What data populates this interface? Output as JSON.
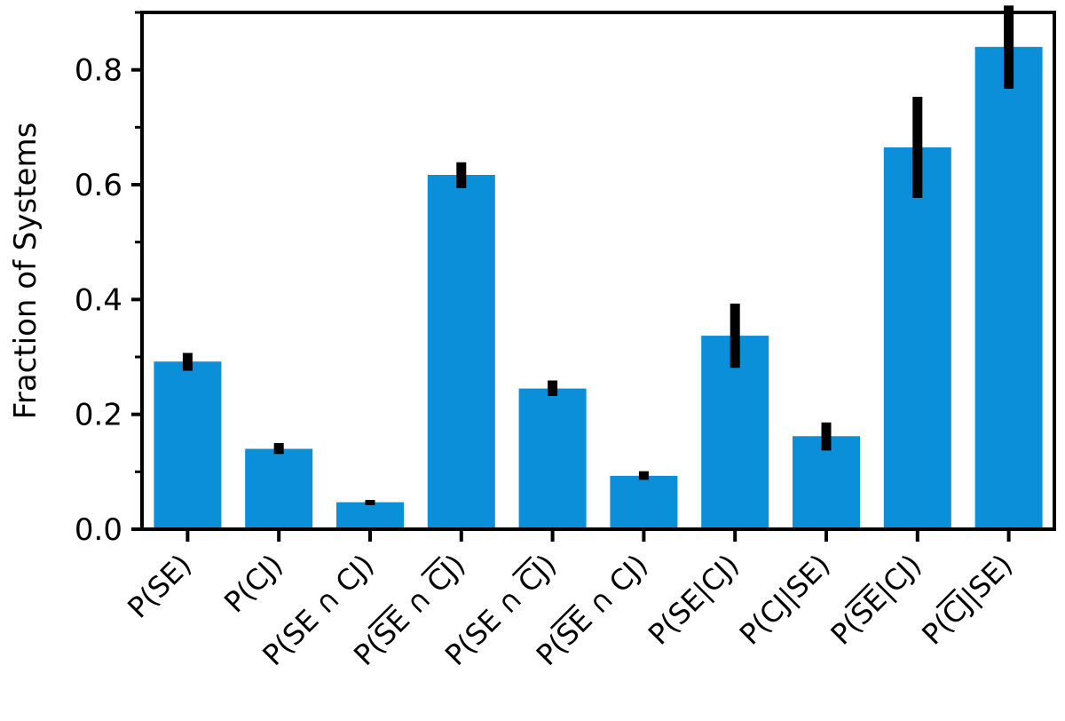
{
  "chart_data": {
    "type": "bar",
    "title": "",
    "xlabel": "",
    "ylabel": "Fraction of Systems",
    "ylim": [
      0.0,
      0.9
    ],
    "yticks_major": [
      0.0,
      0.2,
      0.4,
      0.6,
      0.8
    ],
    "yticks_major_labels": [
      "0.0",
      "0.2",
      "0.4",
      "0.6",
      "0.8"
    ],
    "yticks_minor": [
      0.1,
      0.3,
      0.5,
      0.7,
      0.9
    ],
    "grid": false,
    "legend": "none",
    "categories": [
      {
        "pre": "P(",
        "t1": "SE",
        "b1": false,
        "mid": ")",
        "t2": "",
        "b2": false,
        "post": ""
      },
      {
        "pre": "P(",
        "t1": "CJ",
        "b1": false,
        "mid": ")",
        "t2": "",
        "b2": false,
        "post": ""
      },
      {
        "pre": "P(",
        "t1": "SE",
        "b1": false,
        "mid": " ∩ ",
        "t2": "CJ",
        "b2": false,
        "post": ")"
      },
      {
        "pre": "P(",
        "t1": "SE",
        "b1": true,
        "mid": " ∩ ",
        "t2": "CJ",
        "b2": true,
        "post": ")"
      },
      {
        "pre": "P(",
        "t1": "SE",
        "b1": false,
        "mid": " ∩ ",
        "t2": "CJ",
        "b2": true,
        "post": ")"
      },
      {
        "pre": "P(",
        "t1": "SE",
        "b1": true,
        "mid": " ∩ ",
        "t2": "CJ",
        "b2": false,
        "post": ")"
      },
      {
        "pre": "P(",
        "t1": "SE",
        "b1": false,
        "mid": "|",
        "t2": "CJ",
        "b2": false,
        "post": ")"
      },
      {
        "pre": "P(",
        "t1": "CJ",
        "b1": false,
        "mid": "|",
        "t2": "SE",
        "b2": false,
        "post": ")"
      },
      {
        "pre": "P(",
        "t1": "SE",
        "b1": true,
        "mid": "|",
        "t2": "CJ",
        "b2": false,
        "post": ")"
      },
      {
        "pre": "P(",
        "t1": "CJ",
        "b1": true,
        "mid": "|",
        "t2": "SE",
        "b2": false,
        "post": ")"
      }
    ],
    "values": [
      0.292,
      0.14,
      0.047,
      0.617,
      0.245,
      0.093,
      0.337,
      0.162,
      0.665,
      0.84
    ],
    "err_low": [
      0.276,
      0.131,
      0.042,
      0.594,
      0.232,
      0.086,
      0.281,
      0.137,
      0.577,
      0.767
    ],
    "err_high": [
      0.307,
      0.15,
      0.051,
      0.639,
      0.259,
      0.101,
      0.393,
      0.186,
      0.753,
      0.912
    ],
    "bar_color": "#0a8fd8",
    "error_bar_color": "#000000"
  }
}
